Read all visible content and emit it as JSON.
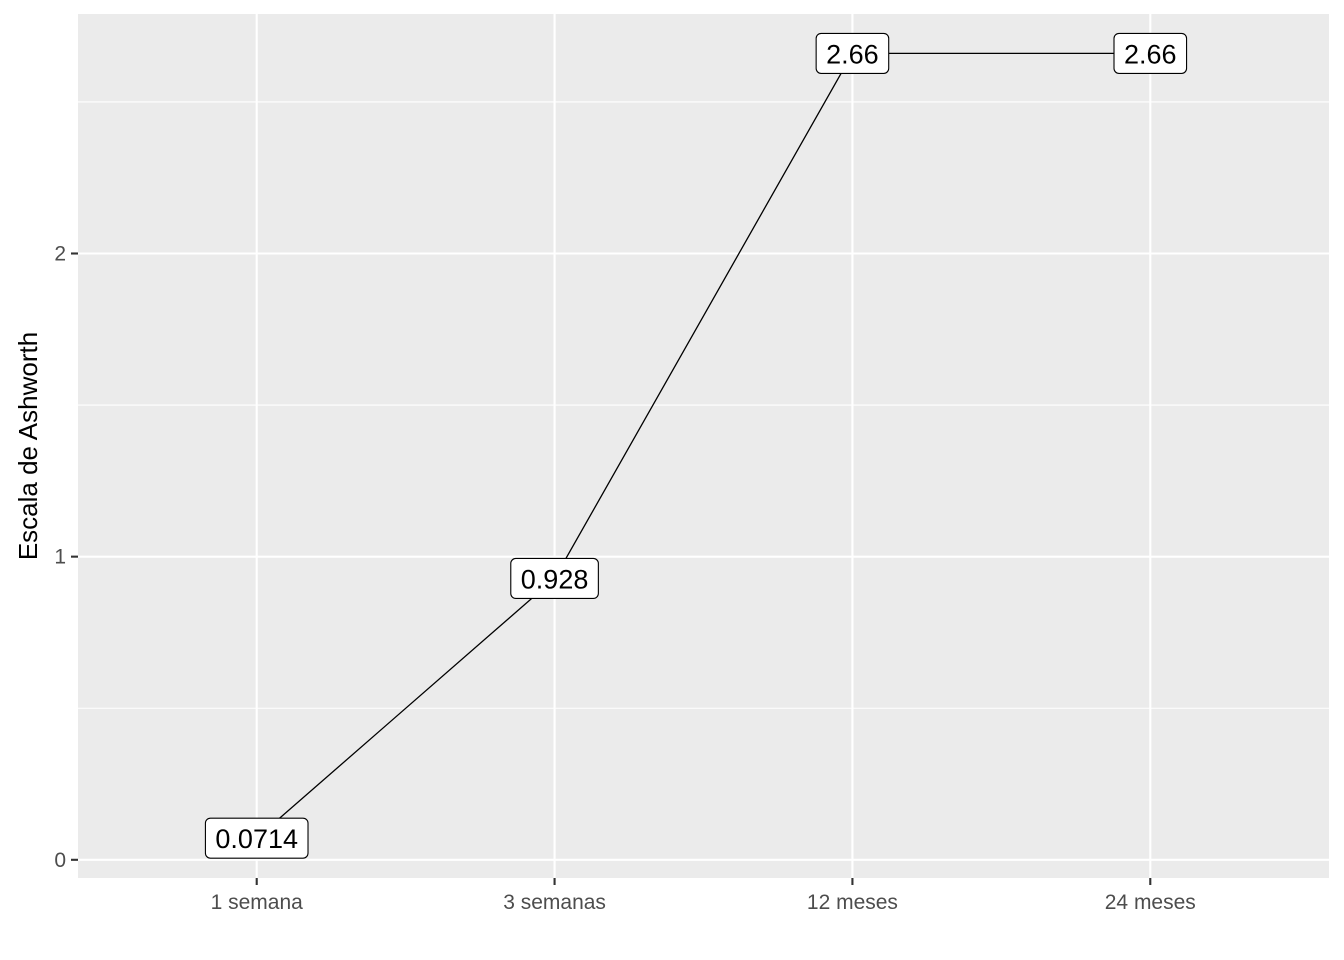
{
  "chart_data": {
    "type": "line",
    "categories": [
      "1 semana",
      "3 semanas",
      "12 meses",
      "24 meses"
    ],
    "values": [
      0.0714,
      0.928,
      2.66,
      2.66
    ],
    "data_labels": [
      "0.0714",
      "0.928",
      "2.66",
      "2.66"
    ],
    "xlabel": "",
    "ylabel": "Escala de Ashworth",
    "ylim": [
      -0.06,
      2.79
    ],
    "yticks": [
      0,
      1,
      2
    ],
    "ytick_labels": [
      "0",
      "1",
      "2"
    ],
    "grid": true,
    "legend": "none",
    "colors": {
      "panel": "#EBEBEB",
      "grid": "#FFFFFF",
      "line": "#000000",
      "tick_text": "#4D4D4D"
    }
  }
}
